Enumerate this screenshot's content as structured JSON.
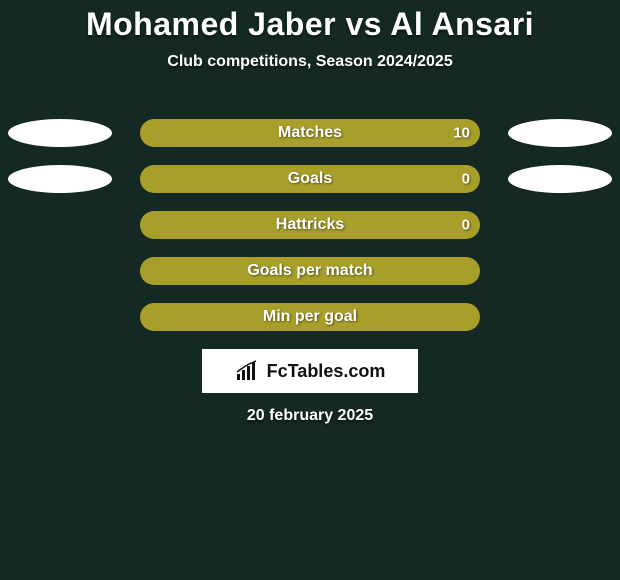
{
  "background_color": "#142923",
  "title": {
    "text": "Mohamed Jaber vs Al Ansari",
    "color": "#ffffff",
    "fontsize": 32
  },
  "subtitle": {
    "text": "Club competitions, Season 2024/2025",
    "color": "#ffffff",
    "fontsize": 16
  },
  "bars": {
    "track_width": 340,
    "track_height": 28,
    "border_radius": 14,
    "fill_color": "#a89f2b",
    "label_color": "#ffffff",
    "label_fontsize": 16,
    "value_color": "#ffffff",
    "value_fontsize": 15,
    "rows": [
      {
        "label": "Matches",
        "value": "10",
        "show_ellipses": true
      },
      {
        "label": "Goals",
        "value": "0",
        "show_ellipses": true
      },
      {
        "label": "Hattricks",
        "value": "0",
        "show_ellipses": false
      },
      {
        "label": "Goals per match",
        "value": "",
        "show_ellipses": false
      },
      {
        "label": "Min per goal",
        "value": "",
        "show_ellipses": false
      }
    ],
    "ellipse": {
      "color": "#ffffff",
      "width": 104,
      "height": 28
    }
  },
  "brand": {
    "background": "#ffffff",
    "text": "FcTables.com",
    "text_color": "#111111",
    "icon_name": "chart-icon"
  },
  "date": {
    "text": "20 february 2025",
    "color": "#ffffff",
    "fontsize": 16
  }
}
